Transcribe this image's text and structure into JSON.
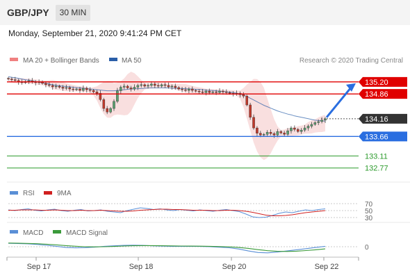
{
  "header": {
    "symbol": "GBP/JPY",
    "timeframe": "30 MIN"
  },
  "datetime": "Monday, September 21, 2020 9:41:24 PM CET",
  "legend": {
    "ma20": "MA 20 + Bollinger Bands",
    "ma50": "MA 50",
    "credit": "Research © 2020 Trading Central",
    "rsi": "RSI",
    "rsi_ma": "9MA",
    "macd": "MACD",
    "macd_signal": "MACD Signal"
  },
  "colors": {
    "resistance": "#e00000",
    "support": "#2a6ee0",
    "target": "#2a9a2a",
    "current": "#333333",
    "ma50": "#2a5ea8",
    "bollinger": "#f2b8b8",
    "candle_up": "#5a9e6f",
    "candle_down": "#c0392b",
    "rsi": "#5a8fd6",
    "rsi_ma": "#d02020",
    "macd": "#5a8fd6",
    "macd_signal": "#3a9a3a"
  },
  "chart_data": [
    {
      "type": "candlestick",
      "x_ticks": [
        "Sep 17",
        "Sep 18",
        "Sep 20",
        "Sep 22"
      ],
      "ylim": [
        132.45,
        135.55
      ],
      "levels": [
        {
          "name": "resistance-2",
          "value": 135.2,
          "label": "135.20",
          "kind": "resistance"
        },
        {
          "name": "resistance-1",
          "value": 134.86,
          "label": "134.86",
          "kind": "resistance"
        },
        {
          "name": "current-price",
          "value": 134.16,
          "label": "134.16",
          "kind": "current"
        },
        {
          "name": "pivot",
          "value": 133.66,
          "label": "133.66",
          "kind": "support"
        },
        {
          "name": "target-1",
          "value": 133.11,
          "label": "133.11",
          "kind": "target"
        },
        {
          "name": "target-2",
          "value": 132.77,
          "label": "132.77",
          "kind": "target"
        }
      ],
      "close_series": [
        135.28,
        135.26,
        135.24,
        135.2,
        135.18,
        135.21,
        135.23,
        135.2,
        135.18,
        135.2,
        135.16,
        135.12,
        135.1,
        135.06,
        135.08,
        135.05,
        135.02,
        135.04,
        135.0,
        134.98,
        135.0,
        134.96,
        135.02,
        134.98,
        134.96,
        134.92,
        134.88,
        134.7,
        134.45,
        134.35,
        134.45,
        134.65,
        134.95,
        135.05,
        135.08,
        135.03,
        135.0,
        135.05,
        135.1,
        135.12,
        135.08,
        135.1,
        135.14,
        135.1,
        135.08,
        135.12,
        135.1,
        135.06,
        135.08,
        135.04,
        135.0,
        134.98,
        134.96,
        135.0,
        134.96,
        134.94,
        134.92,
        134.9,
        134.94,
        134.9,
        134.92,
        134.9,
        134.94,
        134.92,
        134.9,
        134.88,
        134.86,
        134.88,
        134.84,
        134.8,
        134.55,
        134.2,
        133.9,
        133.75,
        133.7,
        133.72,
        133.78,
        133.74,
        133.7,
        133.8,
        133.76,
        133.72,
        133.82,
        133.9,
        133.86,
        133.8,
        133.84,
        133.9,
        133.95,
        134.0,
        134.05,
        134.08,
        134.12,
        134.16
      ],
      "ma50": [
        135.35,
        135.33,
        135.32,
        135.3,
        135.28,
        135.26,
        135.25,
        135.23,
        135.21,
        135.19,
        135.17,
        135.16,
        135.14,
        135.12,
        135.1,
        135.09,
        135.08,
        135.07,
        135.06,
        135.05,
        135.04,
        135.03,
        135.02,
        135.01,
        135.0,
        134.99,
        134.98,
        134.97,
        134.96,
        134.95,
        134.95,
        134.95,
        134.96,
        134.97,
        134.98,
        134.99,
        135.0,
        135.0,
        135.01,
        135.01,
        135.02,
        135.03,
        135.03,
        135.03,
        135.03,
        135.03,
        135.03,
        135.03,
        135.02,
        135.02,
        135.02,
        135.01,
        135.01,
        135.0,
        135.0,
        134.99,
        134.99,
        134.98,
        134.97,
        134.96,
        134.96,
        134.95,
        134.94,
        134.93,
        134.92,
        134.91,
        134.9,
        134.88,
        134.86,
        134.83,
        134.79,
        134.74,
        134.69,
        134.64,
        134.59,
        134.54,
        134.5,
        134.46,
        134.42,
        134.38,
        134.35,
        134.32,
        134.29,
        134.27,
        134.24,
        134.22,
        134.2,
        134.18,
        134.16,
        134.14,
        134.12,
        134.11,
        134.1,
        134.09
      ]
    },
    {
      "type": "line",
      "title": "RSI",
      "levels": [
        70,
        50,
        30
      ],
      "ylim": [
        20,
        80
      ],
      "series": [
        {
          "name": "RSI",
          "values": [
            52,
            50,
            53,
            55,
            51,
            49,
            52,
            54,
            50,
            48,
            51,
            53,
            49,
            50,
            52,
            48,
            46,
            44,
            50,
            54,
            58,
            56,
            53,
            55,
            52,
            50,
            53,
            51,
            49,
            52,
            50,
            48,
            51,
            53,
            50,
            47,
            40,
            32,
            30,
            31,
            36,
            42,
            46,
            44,
            48,
            52,
            50,
            53,
            55
          ]
        },
        {
          "name": "9MA",
          "values": [
            51,
            51,
            52,
            52,
            52,
            51,
            51,
            52,
            51,
            50,
            50,
            51,
            50,
            50,
            51,
            50,
            49,
            48,
            48,
            49,
            51,
            52,
            53,
            54,
            54,
            53,
            53,
            52,
            51,
            51,
            51,
            50,
            50,
            51,
            51,
            50,
            48,
            45,
            41,
            37,
            35,
            35,
            36,
            38,
            41,
            44,
            46,
            48,
            50
          ]
        }
      ]
    },
    {
      "type": "line",
      "title": "MACD",
      "levels": [
        0
      ],
      "ylim": [
        -1,
        1
      ],
      "series": [
        {
          "name": "MACD",
          "values": [
            0.45,
            0.42,
            0.38,
            0.3,
            0.18,
            0.05,
            -0.1,
            -0.15,
            -0.12,
            -0.05,
            0.05,
            0.12,
            0.18,
            0.2,
            0.18,
            0.12,
            0.08,
            0.05,
            0.05,
            0.06,
            0.04,
            0.0,
            -0.06,
            -0.14,
            -0.3,
            -0.55,
            -0.75,
            -0.8,
            -0.7,
            -0.55,
            -0.4,
            -0.25,
            -0.1,
            0.05
          ]
        },
        {
          "name": "MACD Signal",
          "values": [
            0.48,
            0.46,
            0.43,
            0.39,
            0.33,
            0.25,
            0.15,
            0.06,
            0.0,
            -0.02,
            0.0,
            0.04,
            0.09,
            0.13,
            0.15,
            0.15,
            0.13,
            0.11,
            0.09,
            0.08,
            0.07,
            0.05,
            0.02,
            -0.02,
            -0.1,
            -0.22,
            -0.38,
            -0.52,
            -0.6,
            -0.62,
            -0.58,
            -0.5,
            -0.4,
            -0.28
          ]
        }
      ]
    }
  ]
}
